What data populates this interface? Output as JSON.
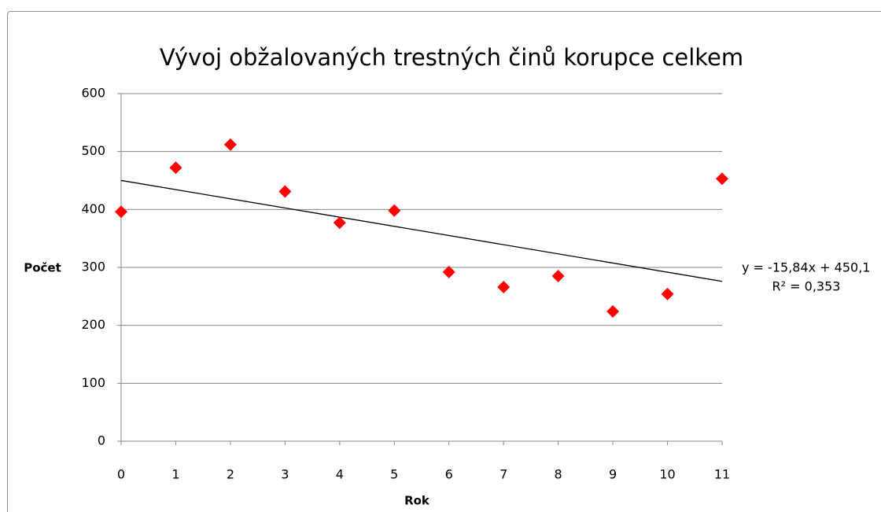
{
  "chart_data": {
    "type": "scatter",
    "title": "Vývoj obžalovaných trestných činů korupce celkem",
    "x_label": "Rok",
    "y_label": "Počet",
    "series": [
      {
        "name": null,
        "color": "#ff0000",
        "x": [
          0,
          1,
          2,
          3,
          4,
          5,
          6,
          7,
          8,
          9,
          10,
          11
        ],
        "values": [
          396,
          472,
          512,
          431,
          377,
          398,
          292,
          266,
          285,
          224,
          254,
          453
        ]
      }
    ],
    "trendline": {
      "slope": -15.84,
      "intercept": 450.1,
      "equation": "y = -15,84x + 450,1",
      "r_squared": "R² = 0,353",
      "color": "#000000"
    },
    "xlim": [
      0,
      11
    ],
    "xticks": [
      0,
      1,
      2,
      3,
      4,
      5,
      6,
      7,
      8,
      9,
      10,
      11
    ],
    "ylim": [
      0,
      600
    ],
    "yticks": [
      0,
      100,
      200,
      300,
      400,
      500,
      600
    ],
    "grid": true
  }
}
